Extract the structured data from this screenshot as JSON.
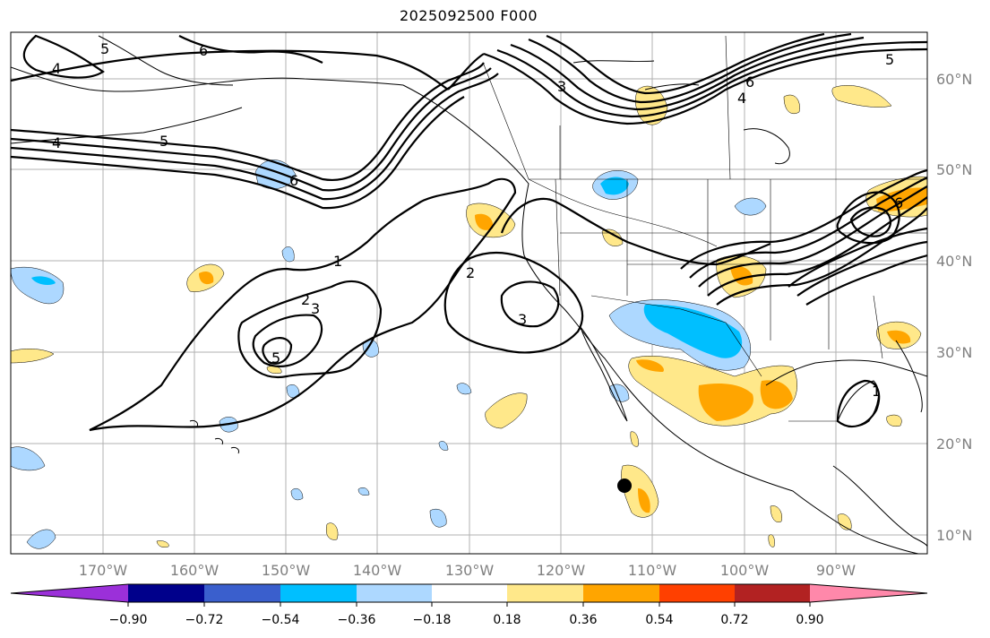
{
  "title": "2025092500 F000",
  "map": {
    "projection": "mercator",
    "extent_lon": [
      -180,
      -80
    ],
    "extent_lat": [
      8,
      65
    ]
  },
  "latitude_labels": [
    "60°N",
    "50°N",
    "40°N",
    "30°N",
    "20°N",
    "10°N"
  ],
  "longitude_labels": [
    "170°W",
    "160°W",
    "150°W",
    "140°W",
    "130°W",
    "120°W",
    "110°W",
    "100°W",
    "90°W"
  ],
  "contour_labels": [
    "4",
    "6",
    "5",
    "3",
    "4",
    "5",
    "6",
    "1",
    "2",
    "3",
    "5",
    "2",
    "3",
    "6",
    "4",
    "6",
    "5",
    "1"
  ],
  "colorbar": {
    "tick_labels": [
      "−0.90",
      "−0.72",
      "−0.54",
      "−0.36",
      "−0.18",
      "0.18",
      "0.36",
      "0.54",
      "0.72",
      "0.90"
    ],
    "colors": [
      "#9b30d9",
      "#00008b",
      "#3a5fcd",
      "#00bfff",
      "#add8ff",
      "#ffffff",
      "#ffe88a",
      "#ffa500",
      "#ff4000",
      "#b22222",
      "#ff88aa"
    ]
  },
  "fill_colors": {
    "neg_light": "#add8ff",
    "neg_mid": "#00bfff",
    "pos_light": "#ffe88a",
    "pos_mid": "#ffa500"
  }
}
